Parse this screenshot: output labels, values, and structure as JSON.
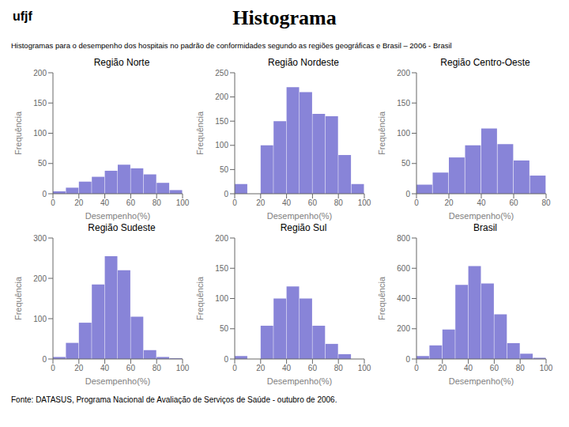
{
  "title": "Histograma",
  "subtitle": "Histogramas para o desempenho dos hospitais no padrão de conformidades segundo as regiões geográficas e Brasil – 2006 - Brasil",
  "annotations": [
    "ufjf",
    "Fonte: DATASUS, Programa Nacional de Avaliação de Serviços de Saúde - outubro de 2006."
  ],
  "chart_data": [
    {
      "type": "histogram",
      "title": "Região Norte",
      "xlabel": "Desempenho(%)",
      "ylabel": "Frequência",
      "bins": [
        0,
        10,
        20,
        30,
        40,
        50,
        60,
        70,
        80,
        90,
        100
      ],
      "values": [
        4,
        10,
        20,
        28,
        38,
        48,
        42,
        32,
        18,
        6
      ],
      "xlim": [
        0,
        100
      ],
      "ylim": [
        0,
        200
      ],
      "xticks": [
        0,
        20,
        40,
        60,
        80,
        100
      ],
      "yticks": [
        0,
        50,
        100,
        150,
        200
      ],
      "color": "#8884d8",
      "grid": false
    },
    {
      "type": "histogram",
      "title": "Região Nordeste",
      "xlabel": "Desempenho(%)",
      "ylabel": "Frequência",
      "bins": [
        0,
        10,
        20,
        30,
        40,
        50,
        60,
        70,
        80,
        90,
        100
      ],
      "values": [
        20,
        null,
        100,
        150,
        220,
        210,
        165,
        160,
        80,
        20
      ],
      "xlim": [
        0,
        100
      ],
      "ylim": [
        0,
        250
      ],
      "xticks": [
        0,
        20,
        40,
        60,
        80,
        100
      ],
      "yticks": [
        0,
        50,
        100,
        150,
        200,
        250
      ],
      "color": "#8884d8",
      "grid": false
    },
    {
      "type": "histogram",
      "title": "Região Centro-Oeste",
      "xlabel": "Desempenho(%)",
      "ylabel": "Frequência",
      "bins": [
        0,
        10,
        20,
        30,
        40,
        50,
        60,
        70,
        80
      ],
      "values": [
        15,
        35,
        60,
        80,
        108,
        82,
        55,
        30
      ],
      "xlim": [
        0,
        80
      ],
      "ylim": [
        0,
        200
      ],
      "xticks": [
        0,
        20,
        40,
        60,
        80
      ],
      "yticks": [
        0,
        50,
        100,
        150,
        200
      ],
      "color": "#8884d8",
      "grid": false
    },
    {
      "type": "histogram",
      "title": "Região Sudeste",
      "xlabel": "Desempenho(%)",
      "ylabel": "Frequência",
      "bins": [
        0,
        10,
        20,
        30,
        40,
        50,
        60,
        70,
        80,
        90,
        100
      ],
      "values": [
        5,
        40,
        90,
        185,
        255,
        220,
        105,
        22,
        5,
        2
      ],
      "xlim": [
        0,
        100
      ],
      "ylim": [
        0,
        300
      ],
      "xticks": [
        0,
        20,
        40,
        60,
        80,
        100
      ],
      "yticks": [
        0,
        100,
        200,
        300
      ],
      "color": "#8884d8",
      "grid": false
    },
    {
      "type": "histogram",
      "title": "Região Sul",
      "xlabel": "Desempenho(%)",
      "ylabel": "Frequência",
      "bins": [
        0,
        10,
        20,
        30,
        40,
        50,
        60,
        70,
        80,
        90
      ],
      "values": [
        5,
        null,
        55,
        100,
        120,
        100,
        55,
        25,
        8
      ],
      "xlim": [
        0,
        100
      ],
      "ylim": [
        0,
        200
      ],
      "xticks": [
        0,
        20,
        40,
        60,
        80,
        100
      ],
      "yticks": [
        0,
        50,
        100,
        150,
        200
      ],
      "color": "#8884d8",
      "grid": false
    },
    {
      "type": "histogram",
      "title": "Brasil",
      "xlabel": "Desempenho(%)",
      "ylabel": "Frequência",
      "bins": [
        0,
        10,
        20,
        30,
        40,
        50,
        60,
        70,
        80,
        90,
        100
      ],
      "values": [
        20,
        90,
        195,
        490,
        615,
        500,
        295,
        105,
        35,
        8
      ],
      "xlim": [
        0,
        100
      ],
      "ylim": [
        0,
        800
      ],
      "xticks": [
        0,
        20,
        40,
        60,
        80,
        100
      ],
      "yticks": [
        0,
        200,
        400,
        600,
        800
      ],
      "color": "#8884d8",
      "grid": false
    }
  ]
}
